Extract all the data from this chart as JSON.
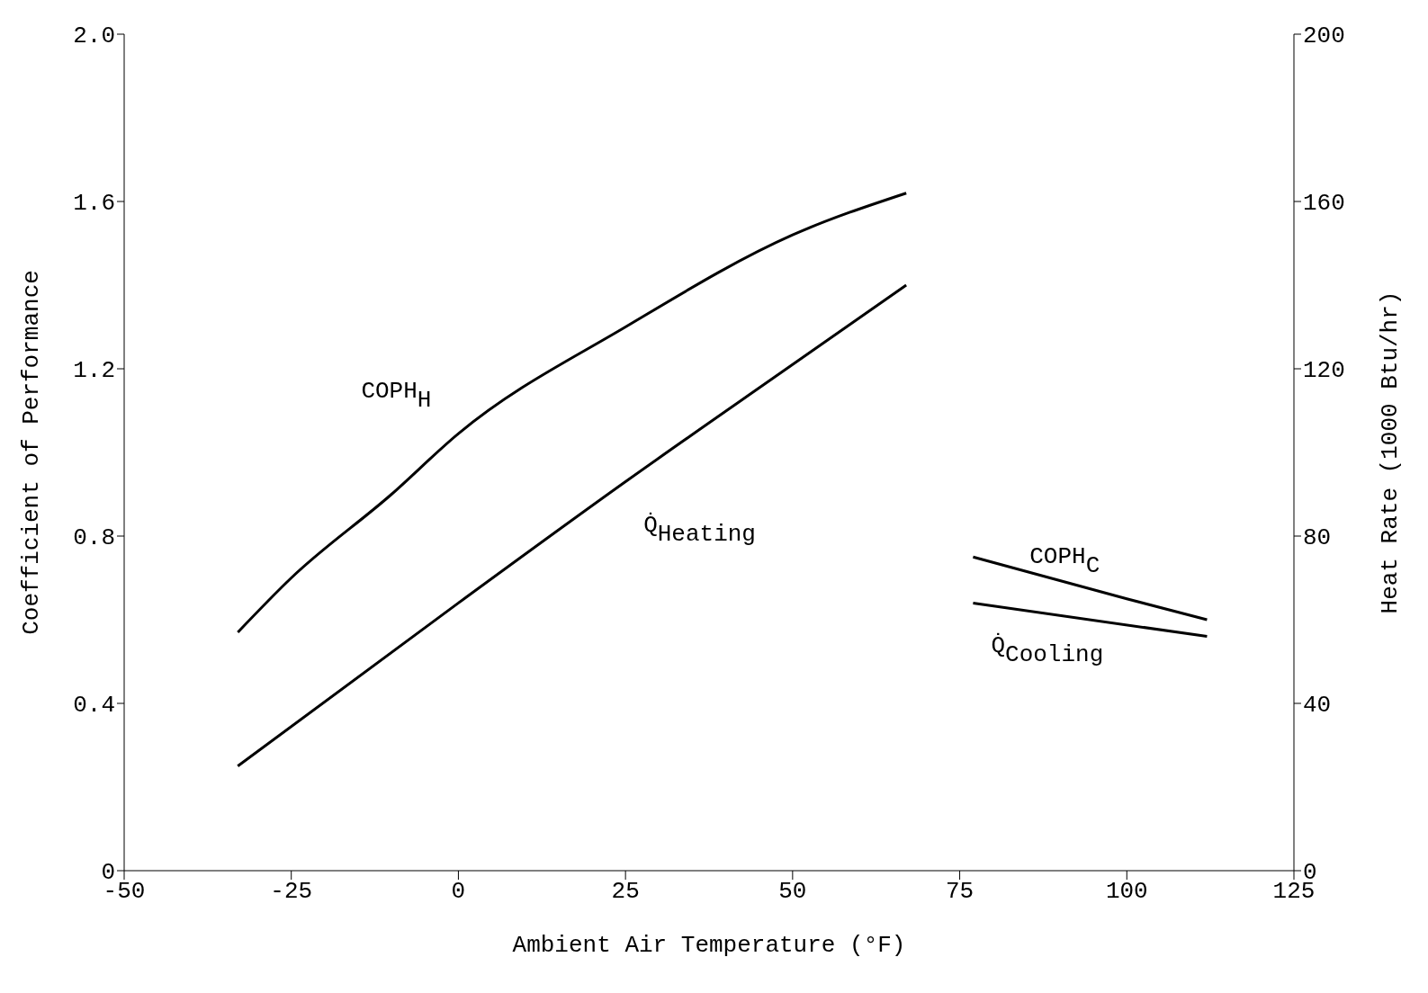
{
  "chart_data": {
    "type": "line",
    "xlabel": "Ambient Air Temperature (°F)",
    "ylabel": "Coefficient of Performance",
    "y2label": "Heat Rate (1000 Btu/hr)",
    "xlim": [
      -50,
      125
    ],
    "xticks": [
      -50,
      -25,
      0,
      25,
      50,
      75,
      100,
      125
    ],
    "ylim": [
      0,
      2.0
    ],
    "yticks": [
      0,
      0.4,
      0.8,
      1.2,
      1.6,
      {
        "value": 2.0,
        "label": "2.0"
      }
    ],
    "y2lim": [
      0,
      200
    ],
    "y2ticks": [
      0,
      40,
      80,
      120,
      160,
      200
    ],
    "grid": false,
    "legend": false,
    "marker": "none",
    "line_style": "solid",
    "series": [
      {
        "name": "COPH$_{H}$",
        "color": "#000000",
        "x": [
          -33,
          -25,
          -10,
          0,
          25,
          50,
          67
        ],
        "values": [
          0.57,
          0.7,
          0.9,
          1.045,
          1.3,
          1.52,
          1.62
        ]
      },
      {
        "name": "Q̇$_{Heating}$",
        "color": "#000000",
        "axis": "y2",
        "x": [
          -33,
          0,
          25,
          50,
          67
        ],
        "values": [
          25,
          64,
          93,
          121,
          140
        ]
      },
      {
        "name": "COPH$_{C}$",
        "color": "#000000",
        "x": [
          77,
          100,
          112
        ],
        "values": [
          0.75,
          0.65,
          0.6
        ]
      },
      {
        "name": "Q̇$_{Cooling}$",
        "color": "#000000",
        "axis": "y2",
        "x": [
          77,
          112
        ],
        "values": [
          64,
          56
        ]
      }
    ]
  }
}
